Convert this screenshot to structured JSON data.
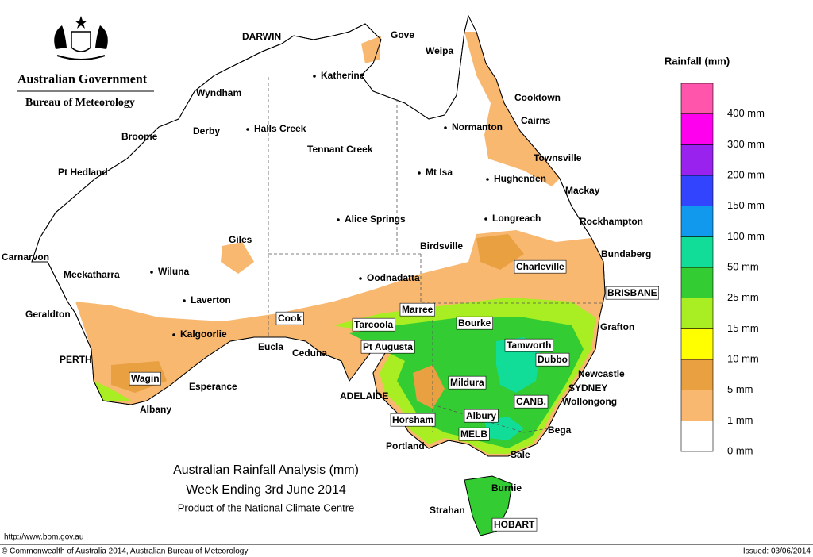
{
  "header": {
    "title": "Australian Government",
    "subtitle": "Bureau of Meteorology"
  },
  "map_title": [
    "Australian Rainfall Analysis (mm)",
    "Week Ending 3rd June 2014",
    "Product of the National Climate Centre"
  ],
  "places": [
    "DARWIN",
    "Gove",
    "Weipa",
    "Katherine",
    "Wyndham",
    "Cooktown",
    "Derby",
    "Halls Creek",
    "Broome",
    "Normanton",
    "Cairns",
    "Tennant Creek",
    "Townsville",
    "Pt Hedland",
    "Mt Isa",
    "Hughenden",
    "Mackay",
    "Alice Springs",
    "Longreach",
    "Rockhampton",
    "Giles",
    "Birdsville",
    "Bundaberg",
    "Carnarvon",
    "Charleville",
    "Meekatharra",
    "Wiluna",
    "Oodnadatta",
    "BRISBANE",
    "Laverton",
    "Marree",
    "Geraldton",
    "Cook",
    "Bourke",
    "Tarcoola",
    "Grafton",
    "Kalgoorlie",
    "Eucla",
    "Pt Augusta",
    "Tamworth",
    "Ceduna",
    "PERTH",
    "Dubbo",
    "Wagin",
    "Newcastle",
    "Mildura",
    "SYDNEY",
    "Esperance",
    "ADELAIDE",
    "CANB.",
    "Wollongong",
    "Albany",
    "Horsham",
    "Albury",
    "Bega",
    "MELB",
    "Portland",
    "Sale",
    "Burnie",
    "Strahan",
    "HOBART"
  ],
  "legend": {
    "title": "Rainfall (mm)",
    "labels": [
      "0 mm",
      "1 mm",
      "5 mm",
      "10 mm",
      "15 mm",
      "25 mm",
      "50 mm",
      "100 mm",
      "150 mm",
      "200 mm",
      "300 mm",
      "400 mm"
    ],
    "colors": [
      "#ffffff",
      "#f8b870",
      "#e8a040",
      "#ffff00",
      "#a8ee22",
      "#33cc33",
      "#11dd99",
      "#1199ee",
      "#3344ff",
      "#9922ee",
      "#ff00ee",
      "#ff55aa"
    ]
  },
  "footer": {
    "url": "http://www.bom.gov.au",
    "copyright": "© Commonwealth of Australia 2014, Australian Bureau of Meteorology",
    "issued": "Issued: 03/06/2014"
  }
}
